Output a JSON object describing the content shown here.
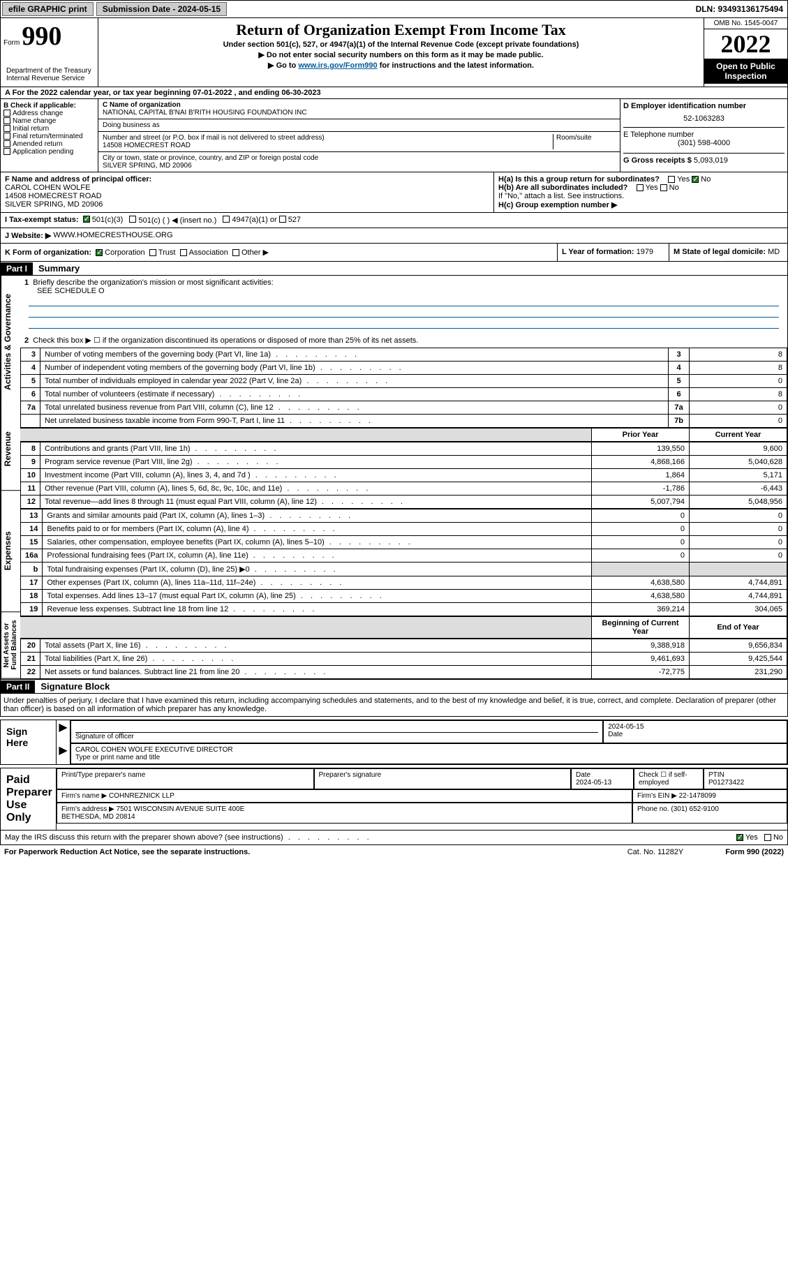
{
  "topbar": {
    "efile": "efile GRAPHIC print",
    "subdate_label": "Submission Date - 2024-05-15",
    "dln": "DLN: 93493136175494"
  },
  "header": {
    "form_label": "Form",
    "form_num": "990",
    "title": "Return of Organization Exempt From Income Tax",
    "sub1": "Under section 501(c), 527, or 4947(a)(1) of the Internal Revenue Code (except private foundations)",
    "sub2": "▶ Do not enter social security numbers on this form as it may be made public.",
    "sub3_pre": "▶ Go to ",
    "sub3_link": "www.irs.gov/Form990",
    "sub3_post": " for instructions and the latest information.",
    "omb": "OMB No. 1545-0047",
    "year": "2022",
    "inspect": "Open to Public Inspection",
    "dept": "Department of the Treasury\nInternal Revenue Service"
  },
  "row_a": "A For the 2022 calendar year, or tax year beginning 07-01-2022   , and ending 06-30-2023",
  "col_b": {
    "hdr": "B Check if applicable:",
    "opts": [
      "Address change",
      "Name change",
      "Initial return",
      "Final return/terminated",
      "Amended return",
      "Application pending"
    ]
  },
  "col_c": {
    "name_label": "C Name of organization",
    "name": "NATIONAL CAPITAL B'NAI B'RITH HOUSING FOUNDATION INC",
    "dba_label": "Doing business as",
    "addr_label": "Number and street (or P.O. box if mail is not delivered to street address)",
    "room_label": "Room/suite",
    "addr": "14508 HOMECREST ROAD",
    "city_label": "City or town, state or province, country, and ZIP or foreign postal code",
    "city": "SILVER SPRING, MD  20906"
  },
  "col_d": {
    "d_label": "D Employer identification number",
    "ein": "52-1063283",
    "e_label": "E Telephone number",
    "phone": "(301) 598-4000",
    "g_label": "G Gross receipts $",
    "gross": "5,093,019"
  },
  "box_f": {
    "label": "F Name and address of principal officer:",
    "name": "CAROL COHEN WOLFE",
    "addr1": "14508 HOMECREST ROAD",
    "addr2": "SILVER SPRING, MD  20906"
  },
  "box_h": {
    "ha": "H(a)  Is this a group return for subordinates?",
    "ha_no": "No",
    "ha_yes": "Yes",
    "hb": "H(b)  Are all subordinates included?",
    "hb_note": "If \"No,\" attach a list. See instructions.",
    "hc": "H(c)  Group exemption number ▶"
  },
  "row_i": {
    "label": "I    Tax-exempt status:",
    "o1": "501(c)(3)",
    "o2": "501(c) (  ) ◀ (insert no.)",
    "o3": "4947(a)(1) or",
    "o4": "527"
  },
  "row_j": {
    "label": "J   Website: ▶",
    "url": "WWW.HOMECRESTHOUSE.ORG"
  },
  "row_k": {
    "label": "K Form of organization:",
    "o1": "Corporation",
    "o2": "Trust",
    "o3": "Association",
    "o4": "Other ▶"
  },
  "row_l": {
    "label": "L Year of formation:",
    "val": "1979"
  },
  "row_m": {
    "label": "M State of legal domicile:",
    "val": "MD"
  },
  "part1": {
    "hdr": "Part I",
    "title": "Summary",
    "q1": "Briefly describe the organization's mission or most significant activities:",
    "q1a": "SEE SCHEDULE O",
    "q2": "Check this box ▶ ☐  if the organization discontinued its operations or disposed of more than 25% of its net assets.",
    "vlabels": {
      "gov": "Activities & Governance",
      "rev": "Revenue",
      "exp": "Expenses",
      "net": "Net Assets or\nFund Balances"
    },
    "gov_rows": [
      {
        "n": "3",
        "d": "Number of voting members of the governing body (Part VI, line 1a)",
        "c": "3",
        "v": "8"
      },
      {
        "n": "4",
        "d": "Number of independent voting members of the governing body (Part VI, line 1b)",
        "c": "4",
        "v": "8"
      },
      {
        "n": "5",
        "d": "Total number of individuals employed in calendar year 2022 (Part V, line 2a)",
        "c": "5",
        "v": "0"
      },
      {
        "n": "6",
        "d": "Total number of volunteers (estimate if necessary)",
        "c": "6",
        "v": "8"
      },
      {
        "n": "7a",
        "d": "Total unrelated business revenue from Part VIII, column (C), line 12",
        "c": "7a",
        "v": "0"
      },
      {
        "n": "",
        "d": "Net unrelated business taxable income from Form 990-T, Part I, line 11",
        "c": "7b",
        "v": "0"
      }
    ],
    "col_hdr_prior": "Prior Year",
    "col_hdr_curr": "Current Year",
    "rev_rows": [
      {
        "n": "8",
        "d": "Contributions and grants (Part VIII, line 1h)",
        "p": "139,550",
        "c": "9,600"
      },
      {
        "n": "9",
        "d": "Program service revenue (Part VIII, line 2g)",
        "p": "4,868,166",
        "c": "5,040,628"
      },
      {
        "n": "10",
        "d": "Investment income (Part VIII, column (A), lines 3, 4, and 7d )",
        "p": "1,864",
        "c": "5,171"
      },
      {
        "n": "11",
        "d": "Other revenue (Part VIII, column (A), lines 5, 6d, 8c, 9c, 10c, and 11e)",
        "p": "-1,786",
        "c": "-6,443"
      },
      {
        "n": "12",
        "d": "Total revenue—add lines 8 through 11 (must equal Part VIII, column (A), line 12)",
        "p": "5,007,794",
        "c": "5,048,956"
      }
    ],
    "exp_rows": [
      {
        "n": "13",
        "d": "Grants and similar amounts paid (Part IX, column (A), lines 1–3)",
        "p": "0",
        "c": "0"
      },
      {
        "n": "14",
        "d": "Benefits paid to or for members (Part IX, column (A), line 4)",
        "p": "0",
        "c": "0"
      },
      {
        "n": "15",
        "d": "Salaries, other compensation, employee benefits (Part IX, column (A), lines 5–10)",
        "p": "0",
        "c": "0"
      },
      {
        "n": "16a",
        "d": "Professional fundraising fees (Part IX, column (A), line 11e)",
        "p": "0",
        "c": "0"
      },
      {
        "n": "b",
        "d": "Total fundraising expenses (Part IX, column (D), line 25) ▶0",
        "p": "",
        "c": ""
      },
      {
        "n": "17",
        "d": "Other expenses (Part IX, column (A), lines 11a–11d, 11f–24e)",
        "p": "4,638,580",
        "c": "4,744,891"
      },
      {
        "n": "18",
        "d": "Total expenses. Add lines 13–17 (must equal Part IX, column (A), line 25)",
        "p": "4,638,580",
        "c": "4,744,891"
      },
      {
        "n": "19",
        "d": "Revenue less expenses. Subtract line 18 from line 12",
        "p": "369,214",
        "c": "304,065"
      }
    ],
    "col_hdr_beg": "Beginning of Current Year",
    "col_hdr_end": "End of Year",
    "net_rows": [
      {
        "n": "20",
        "d": "Total assets (Part X, line 16)",
        "p": "9,388,918",
        "c": "9,656,834"
      },
      {
        "n": "21",
        "d": "Total liabilities (Part X, line 26)",
        "p": "9,461,693",
        "c": "9,425,544"
      },
      {
        "n": "22",
        "d": "Net assets or fund balances. Subtract line 21 from line 20",
        "p": "-72,775",
        "c": "231,290"
      }
    ]
  },
  "part2": {
    "hdr": "Part II",
    "title": "Signature Block",
    "decl": "Under penalties of perjury, I declare that I have examined this return, including accompanying schedules and statements, and to the best of my knowledge and belief, it is true, correct, and complete. Declaration of preparer (other than officer) is based on all information of which preparer has any knowledge."
  },
  "sign": {
    "left": "Sign Here",
    "sig_label": "Signature of officer",
    "date": "2024-05-15",
    "date_label": "Date",
    "name": "CAROL COHEN WOLFE  EXECUTIVE DIRECTOR",
    "name_label": "Type or print name and title"
  },
  "paid": {
    "left": "Paid Preparer Use Only",
    "r1c1": "Print/Type preparer's name",
    "r1c2": "Preparer's signature",
    "r1c3": "Date\n2024-05-13",
    "r1c4": "Check ☐ if self-employed",
    "r1c5": "PTIN\nP01273422",
    "r2c1": "Firm's name    ▶",
    "r2c1v": "COHNREZNICK LLP",
    "r2c2": "Firm's EIN ▶",
    "r2c2v": "22-1478099",
    "r3c1": "Firm's address ▶",
    "r3c1v": "7501 WISCONSIN AVENUE SUITE 400E\nBETHESDA, MD  20814",
    "r3c2": "Phone no.",
    "r3c2v": "(301) 652-9100"
  },
  "discuss": {
    "q": "May the IRS discuss this return with the preparer shown above? (see instructions)",
    "yes": "Yes",
    "no": "No"
  },
  "footer": {
    "left": "For Paperwork Reduction Act Notice, see the separate instructions.",
    "mid": "Cat. No. 11282Y",
    "right": "Form 990 (2022)"
  }
}
